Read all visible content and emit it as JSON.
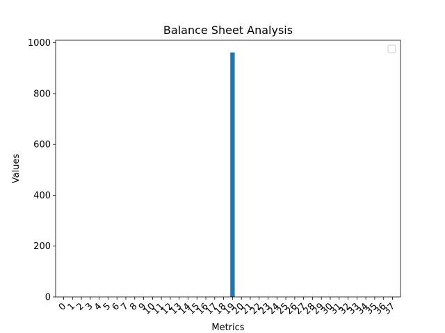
{
  "chart_data": {
    "type": "bar",
    "title": "Balance Sheet Analysis",
    "xlabel": "Metrics",
    "ylabel": "Values",
    "categories": [
      "0",
      "1",
      "2",
      "3",
      "4",
      "5",
      "6",
      "7",
      "8",
      "9",
      "10",
      "11",
      "12",
      "13",
      "14",
      "15",
      "16",
      "17",
      "18",
      "19",
      "20",
      "21",
      "22",
      "23",
      "24",
      "25",
      "26",
      "27",
      "28",
      "29",
      "30",
      "31",
      "32",
      "33",
      "34",
      "35",
      "36",
      "37"
    ],
    "values": [
      0,
      0,
      0,
      0,
      0,
      0,
      0,
      0,
      0,
      0,
      0,
      0,
      0,
      0,
      0,
      0,
      0,
      0,
      0,
      962,
      0,
      0,
      0,
      0,
      0,
      0,
      0,
      0,
      0,
      0,
      0,
      0,
      0,
      0,
      0,
      0,
      0,
      0
    ],
    "ylim": [
      0,
      1010
    ],
    "yticks": [
      0,
      200,
      400,
      600,
      800,
      1000
    ],
    "bar_color": "#1f77b4",
    "grid": false,
    "legend": {
      "visible": true,
      "placement": "top-right",
      "entries": []
    }
  }
}
